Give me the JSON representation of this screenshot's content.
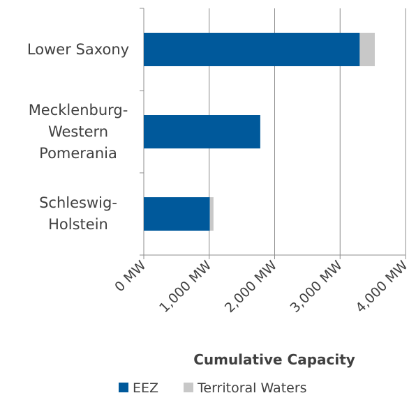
{
  "chart_data": {
    "type": "hbar_stacked",
    "categories": [
      "Lower Saxony",
      "Mecklenburg-Western Pomerania",
      "Schleswig-Holstein"
    ],
    "series": [
      {
        "name": "EEZ",
        "color": "#00599b",
        "values": [
          3300,
          1780,
          1010
        ]
      },
      {
        "name": "Territoral Waters",
        "color": "#c8c8c8",
        "values": [
          230,
          0,
          55
        ]
      }
    ],
    "xlabel": "Cumulative Capacity",
    "xlim": [
      0,
      4000
    ],
    "xticks": [
      {
        "value": 0,
        "label": "0 MW"
      },
      {
        "value": 1000,
        "label": "1,000 MW"
      },
      {
        "value": 2000,
        "label": "2,000 MW"
      },
      {
        "value": 3000,
        "label": "3,000 MW"
      },
      {
        "value": 4000,
        "label": "4,000 MW"
      }
    ],
    "grid": true,
    "legend": "bottom"
  }
}
